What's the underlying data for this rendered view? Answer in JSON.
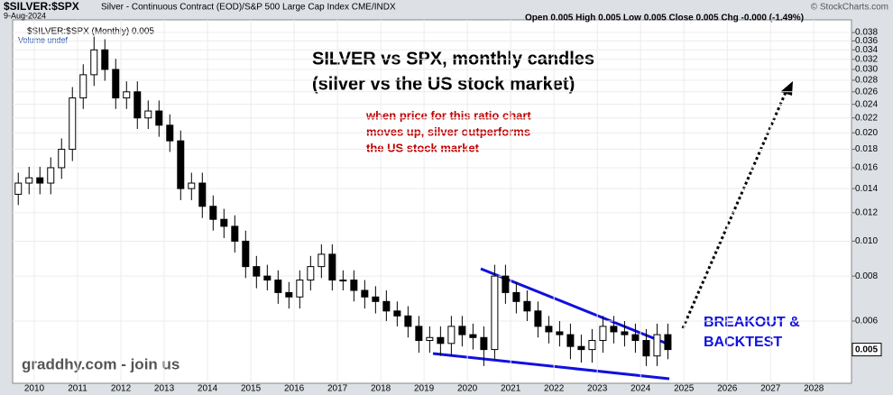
{
  "chart_data": {
    "type": "candlestick",
    "header": {
      "symbol": "$SILVER:$SPX",
      "description": "Silver - Continuous Contract (EOD)/S&P 500 Large Cap Index  CME/INDX",
      "date": "9-Aug-2024",
      "quote": "Open 0.005  High 0.005  Low 0.005  Close 0.005  Chg -0.000 (-1.49%)",
      "credit": "© StockCharts.com",
      "legend": "$SILVER:$SPX (Monthly) 0.005",
      "volume": "Volume undef"
    },
    "title": [
      "SILVER vs SPX, monthly candles",
      "(silver vs the US stock market)"
    ],
    "note": [
      "when price for this ratio chart",
      "moves up, silver outperforms",
      "the US stock market"
    ],
    "callout": [
      "BREAKOUT &",
      "BACKTEST"
    ],
    "watermark": "graddhy.com - join us",
    "last_value": 0.005,
    "log_scale": true,
    "up_color": "#ffffff",
    "down_color": "#000000",
    "line_color": "#000000",
    "trend_color": "#1010e0",
    "x": [
      2009.63,
      2009.88,
      2010.13,
      2010.38,
      2010.63,
      2010.88,
      2011.13,
      2011.38,
      2011.63,
      2011.88,
      2012.13,
      2012.38,
      2012.63,
      2012.88,
      2013.13,
      2013.38,
      2013.63,
      2013.88,
      2014.13,
      2014.38,
      2014.63,
      2014.88,
      2015.13,
      2015.38,
      2015.63,
      2015.88,
      2016.13,
      2016.38,
      2016.63,
      2016.88,
      2017.13,
      2017.38,
      2017.63,
      2017.88,
      2018.13,
      2018.38,
      2018.63,
      2018.88,
      2019.13,
      2019.38,
      2019.63,
      2019.88,
      2020.13,
      2020.38,
      2020.63,
      2020.88,
      2021.13,
      2021.38,
      2021.63,
      2021.88,
      2022.13,
      2022.38,
      2022.63,
      2022.88,
      2023.13,
      2023.38,
      2023.63,
      2023.88,
      2024.13,
      2024.38,
      2024.63
    ],
    "open": [
      0.0135,
      0.0145,
      0.015,
      0.0145,
      0.016,
      0.018,
      0.025,
      0.029,
      0.034,
      0.03,
      0.025,
      0.026,
      0.022,
      0.023,
      0.021,
      0.019,
      0.014,
      0.0145,
      0.0125,
      0.0115,
      0.011,
      0.01,
      0.0085,
      0.008,
      0.0078,
      0.0072,
      0.007,
      0.0078,
      0.0085,
      0.0092,
      0.0078,
      0.0078,
      0.0073,
      0.007,
      0.0068,
      0.0064,
      0.0062,
      0.0058,
      0.0053,
      0.0054,
      0.0052,
      0.0058,
      0.0055,
      0.0054,
      0.005,
      0.008,
      0.0072,
      0.0068,
      0.0064,
      0.0058,
      0.0056,
      0.0055,
      0.0051,
      0.005,
      0.0053,
      0.0058,
      0.0056,
      0.0055,
      0.0053,
      0.0048,
      0.0055
    ],
    "high": [
      0.0155,
      0.0161,
      0.0161,
      0.0171,
      0.0193,
      0.0268,
      0.031,
      0.037,
      0.0364,
      0.0321,
      0.0278,
      0.0278,
      0.0246,
      0.0246,
      0.0225,
      0.0203,
      0.0155,
      0.0155,
      0.0134,
      0.0123,
      0.0118,
      0.0107,
      0.0091,
      0.0086,
      0.0083,
      0.0077,
      0.0083,
      0.0091,
      0.0098,
      0.0098,
      0.0083,
      0.0083,
      0.0078,
      0.0075,
      0.0073,
      0.0068,
      0.0066,
      0.0062,
      0.0058,
      0.0058,
      0.0062,
      0.0062,
      0.0059,
      0.0058,
      0.0086,
      0.0086,
      0.0077,
      0.0073,
      0.0068,
      0.0062,
      0.006,
      0.0059,
      0.0055,
      0.0057,
      0.0062,
      0.0062,
      0.006,
      0.0059,
      0.0057,
      0.0059,
      0.0059
    ],
    "low": [
      0.0126,
      0.0135,
      0.0135,
      0.0135,
      0.0149,
      0.0167,
      0.0233,
      0.027,
      0.0279,
      0.0233,
      0.0233,
      0.0205,
      0.0205,
      0.0195,
      0.0177,
      0.013,
      0.013,
      0.0116,
      0.0107,
      0.0102,
      0.0093,
      0.0079,
      0.0074,
      0.0073,
      0.0067,
      0.0065,
      0.0065,
      0.0073,
      0.0079,
      0.0073,
      0.0073,
      0.0068,
      0.0065,
      0.0063,
      0.006,
      0.0058,
      0.0054,
      0.0049,
      0.0049,
      0.0048,
      0.0048,
      0.0051,
      0.005,
      0.0045,
      0.0047,
      0.0067,
      0.0063,
      0.006,
      0.0054,
      0.0052,
      0.0051,
      0.0047,
      0.0046,
      0.0046,
      0.0049,
      0.0052,
      0.0051,
      0.0049,
      0.0045,
      0.0045,
      0.0047
    ],
    "close": [
      0.0145,
      0.015,
      0.0145,
      0.016,
      0.018,
      0.025,
      0.029,
      0.034,
      0.03,
      0.025,
      0.026,
      0.022,
      0.023,
      0.021,
      0.019,
      0.014,
      0.0145,
      0.0125,
      0.0115,
      0.011,
      0.01,
      0.0085,
      0.008,
      0.0078,
      0.0072,
      0.007,
      0.0078,
      0.0085,
      0.0092,
      0.0078,
      0.0078,
      0.0073,
      0.007,
      0.0068,
      0.0064,
      0.0062,
      0.0058,
      0.0053,
      0.0054,
      0.0052,
      0.0058,
      0.0055,
      0.0054,
      0.005,
      0.008,
      0.0072,
      0.0068,
      0.0064,
      0.0058,
      0.0056,
      0.0055,
      0.0051,
      0.005,
      0.0053,
      0.0058,
      0.0056,
      0.0055,
      0.0053,
      0.0048,
      0.0055,
      0.005
    ],
    "xlim": [
      2009.5,
      2028.87
    ],
    "xticks": [
      2010,
      2011,
      2012,
      2013,
      2014,
      2015,
      2016,
      2017,
      2018,
      2019,
      2020,
      2021,
      2022,
      2023,
      2024,
      2025,
      2026,
      2027,
      2028
    ],
    "ylim": [
      0.00403,
      0.0412
    ],
    "yticks": [
      0.006,
      0.008,
      {
        "value": 0.01,
        "label": "0.010"
      },
      0.012,
      0.014,
      0.016,
      0.018,
      {
        "value": 0.02,
        "label": "0.020"
      },
      0.022,
      0.024,
      0.026,
      0.028,
      {
        "value": 0.03,
        "label": "0.030"
      },
      0.032,
      0.034,
      0.036,
      0.038
    ]
  }
}
